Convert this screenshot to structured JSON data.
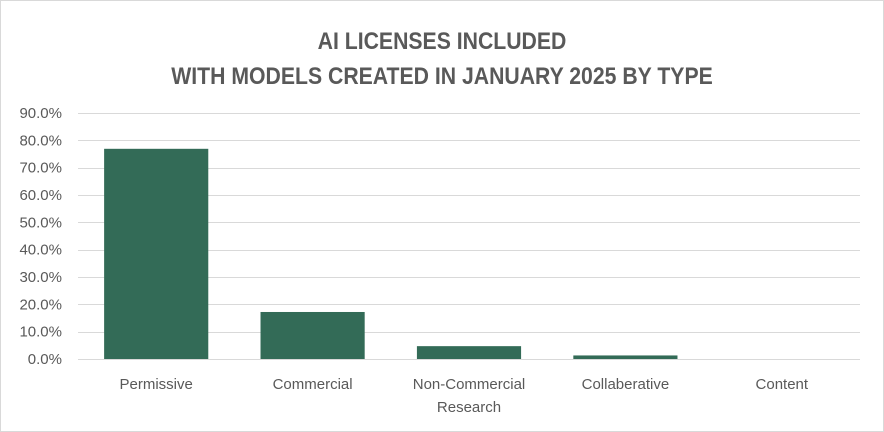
{
  "chart_data": {
    "type": "bar",
    "title": "AI LICENSES INCLUDED\nWITH MODELS CREATED IN JANUARY 2025 BY TYPE",
    "title_lines": [
      "AI LICENSES INCLUDED",
      "WITH MODELS CREATED IN JANUARY 2025 BY TYPE"
    ],
    "categories": [
      "Permissive",
      "Commercial",
      "Non-Commercial Research",
      "Collaberative",
      "Content"
    ],
    "category_label_lines": [
      [
        "Permissive"
      ],
      [
        "Commercial"
      ],
      [
        "Non-Commercial",
        "Research"
      ],
      [
        "Collaberative"
      ],
      [
        "Content"
      ]
    ],
    "values": [
      76.9,
      17.2,
      4.7,
      1.3,
      0.0
    ],
    "value_format": "percent_one_decimal",
    "xlabel": "",
    "ylabel": "",
    "ylim": [
      0,
      90
    ],
    "yticks": [
      0,
      10,
      20,
      30,
      40,
      50,
      60,
      70,
      80,
      90
    ],
    "ytick_labels": [
      "0.0%",
      "10.0%",
      "20.0%",
      "30.0%",
      "40.0%",
      "50.0%",
      "60.0%",
      "70.0%",
      "80.0%",
      "90.0%"
    ],
    "grid": true,
    "legend": "none",
    "bar_color": "#336b57",
    "grid_color": "#d9d9d9",
    "text_color": "#595959"
  }
}
